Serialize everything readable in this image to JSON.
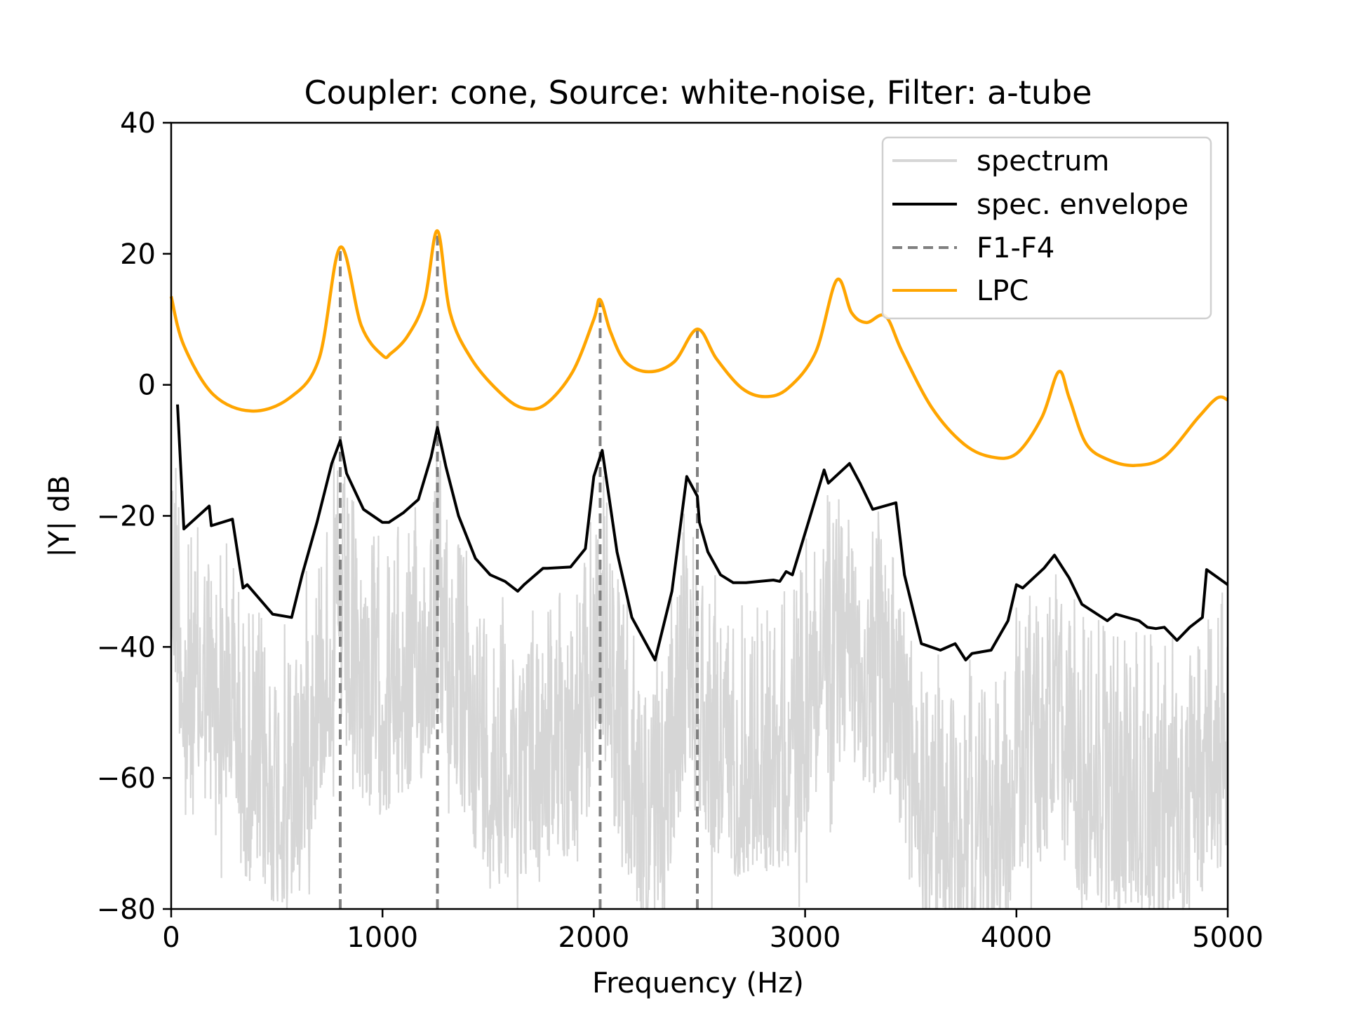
{
  "chart_data": {
    "type": "line",
    "title": "Coupler: cone, Source: white-noise, Filter: a-tube",
    "xlabel": "Frequency (Hz)",
    "ylabel": "|Y| dB",
    "xlim": [
      0,
      5000
    ],
    "ylim": [
      -80,
      40
    ],
    "xticks": [
      0,
      1000,
      2000,
      3000,
      4000,
      5000
    ],
    "yticks": [
      -80,
      -60,
      -40,
      -20,
      0,
      20,
      40
    ],
    "xtick_labels": [
      "0",
      "1000",
      "2000",
      "3000",
      "4000",
      "5000"
    ],
    "ytick_labels": [
      "−80",
      "−60",
      "−40",
      "−20",
      "0",
      "20",
      "40"
    ],
    "grid": false,
    "legend_position": "top-right",
    "legend": [
      "spectrum",
      "spec. envelope",
      "F1-F4",
      "LPC"
    ],
    "colors": {
      "spectrum": "#d6d6d6",
      "envelope": "#000000",
      "formants": "#808080",
      "lpc": "#ffa500"
    },
    "formants_hz": [
      800,
      1260,
      2030,
      2490
    ],
    "envelope": {
      "name": "spec. envelope",
      "x": [
        30,
        60,
        180,
        190,
        290,
        340,
        360,
        480,
        570,
        620,
        690,
        760,
        800,
        830,
        910,
        1000,
        1030,
        1100,
        1170,
        1230,
        1260,
        1300,
        1360,
        1440,
        1510,
        1580,
        1640,
        1670,
        1760,
        1780,
        1890,
        1960,
        2000,
        2040,
        2110,
        2180,
        2290,
        2370,
        2440,
        2490,
        2500,
        2540,
        2600,
        2660,
        2720,
        2850,
        2880,
        2910,
        2940,
        3020,
        3090,
        3110,
        3210,
        3260,
        3320,
        3430,
        3470,
        3550,
        3640,
        3710,
        3760,
        3790,
        3880,
        3960,
        4000,
        4030,
        4130,
        4180,
        4250,
        4310,
        4430,
        4470,
        4580,
        4620,
        4660,
        4700,
        4760,
        4820,
        4880,
        4900,
        5000
      ],
      "y": [
        -3,
        -22,
        -18.5,
        -21.5,
        -20.5,
        -31,
        -30.5,
        -35,
        -35.5,
        -29,
        -21,
        -12,
        -8.5,
        -13.5,
        -19,
        -21,
        -21,
        -19.5,
        -17.5,
        -11,
        -6.5,
        -12.5,
        -20,
        -26.5,
        -29,
        -30,
        -31.5,
        -30.5,
        -28,
        -28,
        -27.8,
        -25,
        -14,
        -10,
        -25.5,
        -35.5,
        -42,
        -31.5,
        -14,
        -17,
        -21,
        -25.5,
        -29,
        -30.2,
        -30.2,
        -29.8,
        -30,
        -28.5,
        -29,
        -20.5,
        -13,
        -15,
        -12,
        -15,
        -19,
        -18,
        -29,
        -39.5,
        -40.5,
        -39.5,
        -42,
        -41,
        -40.5,
        -36,
        -30.5,
        -31,
        -28,
        -26,
        -29.5,
        -33.5,
        -36,
        -35,
        -36,
        -37,
        -37.2,
        -37,
        -39,
        -37,
        -35.5,
        -28.2,
        -30.5
      ]
    },
    "lpc": {
      "name": "LPC",
      "x": [
        0,
        60,
        200,
        380,
        560,
        700,
        800,
        900,
        1000,
        1040,
        1120,
        1200,
        1260,
        1320,
        1420,
        1550,
        1660,
        1770,
        1900,
        2000,
        2030,
        2080,
        2150,
        2260,
        2380,
        2490,
        2580,
        2700,
        2810,
        2920,
        3050,
        3150,
        3220,
        3290,
        3380,
        3460,
        3600,
        3750,
        3880,
        4000,
        4120,
        4200,
        4250,
        4330,
        4440,
        4560,
        4700,
        4860,
        4950,
        5000
      ],
      "y": [
        13.5,
        6,
        -1.5,
        -4,
        -2,
        4,
        21,
        9,
        4.5,
        4.8,
        7.5,
        13,
        23.5,
        11,
        4,
        -1,
        -3.5,
        -3,
        2,
        10,
        13,
        8,
        3.5,
        2,
        3.5,
        8.5,
        4,
        -0.5,
        -1.8,
        -0.5,
        5,
        16,
        11,
        9.5,
        10.5,
        5,
        -3.5,
        -9,
        -11,
        -10.5,
        -5,
        2,
        -2,
        -9,
        -11.5,
        -12.3,
        -11,
        -5,
        -2,
        -2.3
      ]
    },
    "spectrum": {
      "name": "spectrum",
      "description_values": "dense noisy magnitude spectrum lying below the envelope, following its shape",
      "offset_below_envelope_db": [
        0,
        45
      ]
    }
  }
}
